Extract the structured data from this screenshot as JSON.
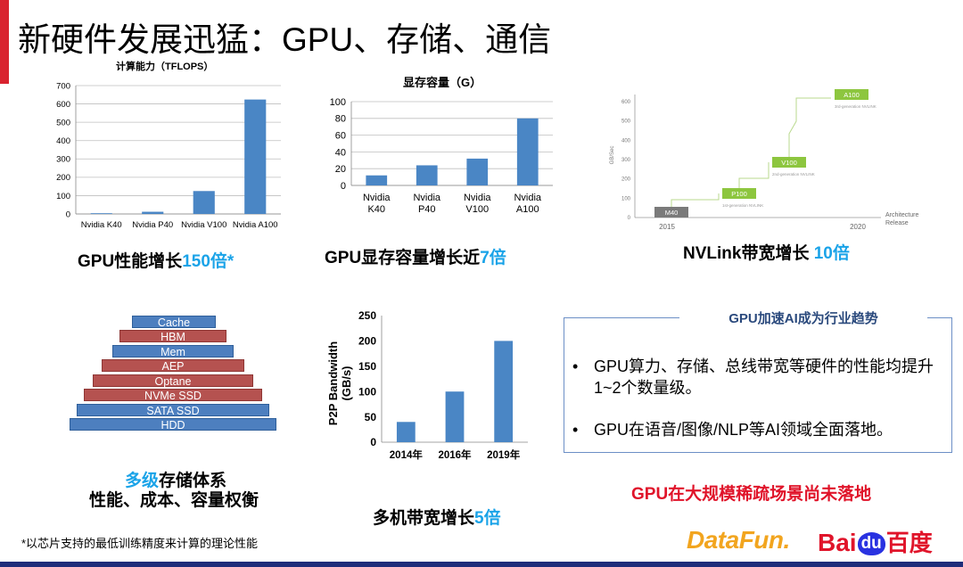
{
  "title": "新硬件发展迅猛：GPU、存储、通信",
  "colors": {
    "bar": "#4a86c5",
    "accent": "#1aa3e8",
    "red": "#e0142a"
  },
  "chart_data": [
    {
      "type": "bar",
      "title": "计算能力（TFLOPS）",
      "categories": [
        "Nvidia K40",
        "Nvidia P40",
        "Nvidia V100",
        "Nvidia A100"
      ],
      "values": [
        4,
        12,
        125,
        624
      ],
      "ylim": [
        0,
        700
      ],
      "yticks": [
        "0",
        "100",
        "200",
        "300",
        "400",
        "500",
        "600",
        "700"
      ]
    },
    {
      "type": "bar",
      "title": "显存容量（G）",
      "categories": [
        "Nvidia\nK40",
        "Nvidia\nP40",
        "Nvidia\nV100",
        "Nvidia\nA100"
      ],
      "values": [
        12,
        24,
        32,
        80
      ],
      "ylim": [
        0,
        100
      ],
      "yticks": [
        "0",
        "20",
        "40",
        "60",
        "80",
        "100"
      ]
    },
    {
      "type": "bar",
      "ylabel": "P2P Bandwidth (GB/s)",
      "categories": [
        "2014年",
        "2016年",
        "2019年"
      ],
      "values": [
        40,
        100,
        200
      ],
      "ylim": [
        0,
        250
      ],
      "yticks": [
        "0",
        "50",
        "100",
        "150",
        "200",
        "250"
      ]
    }
  ],
  "captions": {
    "gpu_perf_a": "GPU性能增长",
    "gpu_perf_b": "150倍*",
    "gpu_mem_a": "GPU显存容量增长近",
    "gpu_mem_b": "7倍",
    "nvlink_a": "NVLink带宽增长 ",
    "nvlink_b": "10倍",
    "storage1_a": "多级",
    "storage1_b": "存储体系",
    "storage2": "性能、成本、容量权衡",
    "bandwidth_a": "多机带宽增长",
    "bandwidth_b": "5倍"
  },
  "nvlink": {
    "ylabel": "GB/Sec",
    "yticks": [
      "0",
      "100",
      "200",
      "300",
      "400",
      "500",
      "600"
    ],
    "x_start": "2015",
    "x_end": "2020",
    "xlabel": "Architecture Release",
    "chips": [
      {
        "name": "M40",
        "note": ""
      },
      {
        "name": "P100",
        "note": "1st-generation NVLINK"
      },
      {
        "name": "V100",
        "note": "2nd-generation NVLINK"
      },
      {
        "name": "A100",
        "note": "3rd-generation NVLINK"
      }
    ]
  },
  "pyramid": [
    "Cache",
    "HBM",
    "Mem",
    "AEP",
    "Optane",
    "NVMe SSD",
    "SATA SSD",
    "HDD"
  ],
  "box": {
    "title": "GPU加速AI成为行业趋势",
    "bullets": [
      "GPU算力、存储、总线带宽等硬件的性能均提升1~2个数量级。",
      "GPU在语音/图像/NLP等AI领域全面落地。"
    ]
  },
  "warning": "GPU在大规模稀疏场景尚未落地",
  "footnote": "*以芯片支持的最低训练精度来计算的理论性能",
  "logos": {
    "datafun": "DataFun.",
    "baidu_a": "Bai",
    "baidu_b": "du",
    "baidu_c": "百度"
  }
}
